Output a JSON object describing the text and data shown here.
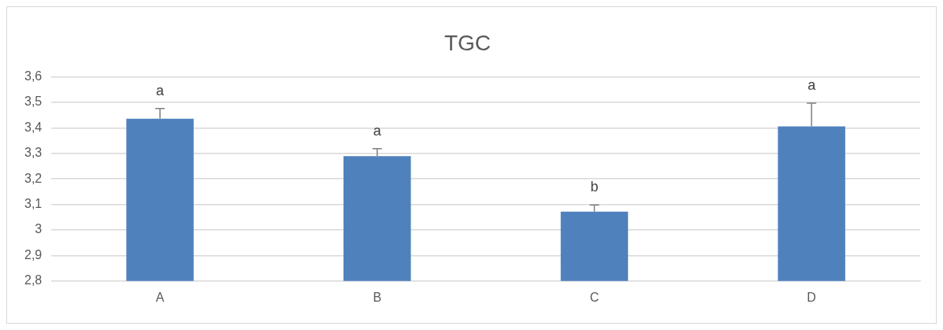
{
  "chart_data": {
    "type": "bar",
    "title": "TGC",
    "categories": [
      "A",
      "B",
      "C",
      "D"
    ],
    "values": [
      3.436,
      3.289,
      3.072,
      3.406
    ],
    "errors": [
      [
        3.436,
        3.476
      ],
      [
        3.289,
        3.319
      ],
      [
        3.072,
        3.098
      ],
      [
        3.406,
        3.497
      ]
    ],
    "color": "#4f81bd",
    "ylim": [
      2.8,
      3.6
    ],
    "yticks": [
      {
        "value": 2.8,
        "label": "2,8"
      },
      {
        "value": 2.9,
        "label": "2,9"
      },
      {
        "value": 3,
        "label": "3"
      },
      {
        "value": 3.1,
        "label": "3,1"
      },
      {
        "value": 3.2,
        "label": "3,2"
      },
      {
        "value": 3.3,
        "label": "3,3"
      },
      {
        "value": 3.4,
        "label": "3,4"
      },
      {
        "value": 3.5,
        "label": "3,5"
      },
      {
        "value": 3.6,
        "label": "3,6"
      }
    ],
    "grid": "y",
    "legend": false,
    "annotations": [
      "a",
      "a",
      "b",
      "a"
    ]
  }
}
